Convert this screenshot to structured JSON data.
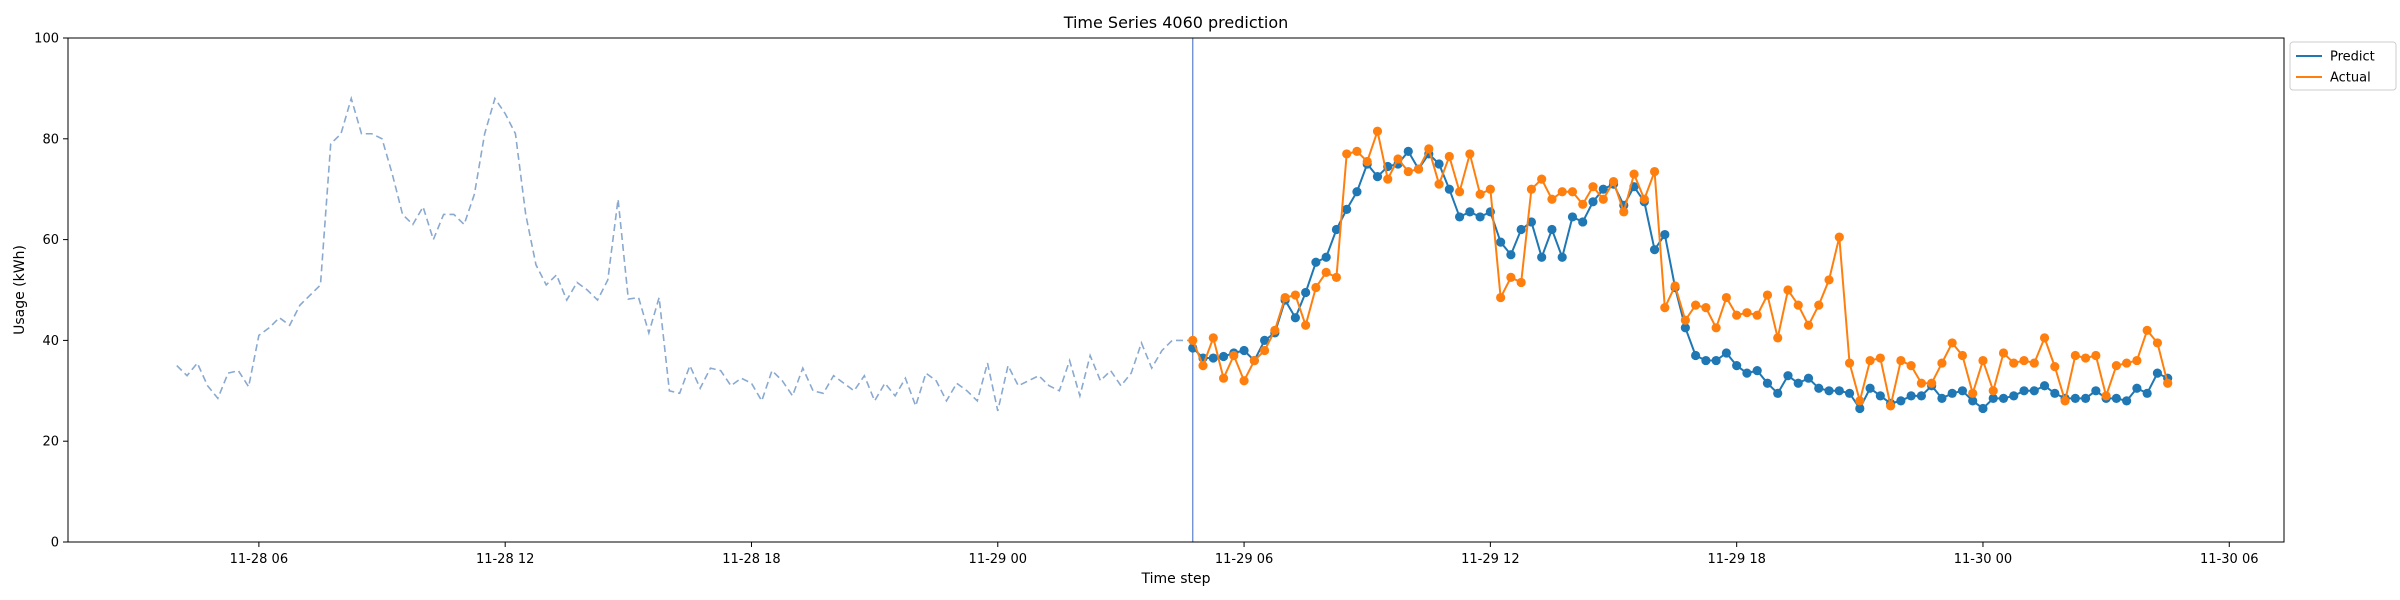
{
  "chart_data": {
    "type": "line",
    "title": "Time Series 4060 prediction",
    "xlabel": "Time step",
    "ylabel": "Usage (kWh)",
    "ylim": [
      0,
      100
    ],
    "yticks": [
      0,
      20,
      40,
      60,
      80,
      100
    ],
    "xlim": [
      "2024-11-28 01:21",
      "2024-11-30 07:20"
    ],
    "xtick_labels": [
      {
        "label": "11-28 06",
        "x": "2024-11-28 06:00"
      },
      {
        "label": "11-28 12",
        "x": "2024-11-28 12:00"
      },
      {
        "label": "11-28 18",
        "x": "2024-11-28 18:00"
      },
      {
        "label": "11-29 00",
        "x": "2024-11-29 00:00"
      },
      {
        "label": "11-29 06",
        "x": "2024-11-29 06:00"
      },
      {
        "label": "11-29 12",
        "x": "2024-11-29 12:00"
      },
      {
        "label": "11-29 18",
        "x": "2024-11-29 18:00"
      },
      {
        "label": "11-30 00",
        "x": "2024-11-30 00:00"
      },
      {
        "label": "11-30 06",
        "x": "2024-11-30 06:00"
      }
    ],
    "interval_minutes": 15,
    "history": {
      "start": "2024-11-28 04:00",
      "color": "#8aa9d0",
      "style": "dashed",
      "values": [
        35,
        33,
        35.5,
        31,
        28.5,
        33.5,
        34,
        30.8,
        41,
        42.5,
        44.5,
        43,
        47,
        49,
        51,
        79,
        81,
        88,
        81,
        81,
        80,
        73,
        65,
        63,
        66.5,
        60,
        65,
        65,
        63,
        69,
        81,
        88,
        85,
        81,
        65,
        55,
        51,
        53,
        48,
        51.5,
        50,
        48,
        52,
        68,
        48.2,
        48.5,
        41.5,
        48.5,
        30,
        29.5,
        35,
        30.5,
        34.5,
        34,
        31,
        32.5,
        31.5,
        28,
        34,
        32,
        29,
        34.5,
        30,
        29.5,
        33,
        31.5,
        30,
        33,
        28,
        31.5,
        29,
        32.5,
        27,
        33.5,
        32,
        28,
        31.5,
        30,
        28,
        35.5,
        26,
        35,
        31,
        32,
        33,
        31,
        30,
        36,
        29,
        37,
        32,
        34,
        31,
        33.5,
        39.5,
        34.5,
        38,
        40
      ]
    },
    "forecast_start": "2024-11-29 04:45",
    "series": [
      {
        "name": "Predict",
        "color": "#1f77b4",
        "values": [
          38.5,
          36.5,
          36.5,
          36.8,
          37.5,
          38,
          36,
          40,
          41.5,
          48,
          44.5,
          49.5,
          55.5,
          56.5,
          62,
          66,
          69.5,
          75,
          72.5,
          74.5,
          75,
          77.5,
          74,
          77,
          75,
          70,
          64.5,
          65.5,
          64.5,
          65.5,
          59.5,
          57,
          62,
          63.5,
          56.5,
          62,
          56.5,
          64.5,
          63.5,
          67.5,
          70,
          71,
          66.8,
          70.5,
          67.5,
          58,
          61,
          50.5,
          42.5,
          37,
          36,
          36,
          37.5,
          35,
          33.5,
          34,
          31.5,
          29.5,
          33,
          31.5,
          32.5,
          30.5,
          30,
          30,
          29.5,
          26.5,
          30.5,
          29,
          27.5,
          28,
          29,
          29,
          31,
          28.5,
          29.5,
          30,
          28,
          26.5,
          28.5,
          28.5,
          29,
          30,
          30,
          31,
          29.5,
          28.5,
          28.5,
          28.5,
          30,
          28.5,
          28.5,
          28,
          30.5,
          29.5,
          33.5,
          32.5
        ]
      },
      {
        "name": "Actual",
        "color": "#ff7f0e",
        "values": [
          40,
          35,
          40.5,
          32.5,
          37,
          32,
          36,
          38,
          42,
          48.5,
          49,
          43,
          50.5,
          53.5,
          52.5,
          77,
          77.5,
          75.5,
          81.5,
          72,
          76,
          73.5,
          74,
          78,
          71,
          76.5,
          69.5,
          77,
          69,
          70,
          48.5,
          52.5,
          51.5,
          70,
          72,
          68,
          69.5,
          69.5,
          67,
          70.5,
          68,
          71.5,
          65.5,
          73,
          68,
          73.5,
          46.5,
          50.8,
          44,
          47,
          46.5,
          42.5,
          48.5,
          45,
          45.5,
          45,
          49,
          40.5,
          50,
          47,
          43,
          47,
          52,
          60.5,
          35.5,
          28,
          36,
          36.5,
          27,
          36,
          35,
          31.5,
          31.5,
          35.5,
          39.5,
          37,
          29.5,
          36,
          30,
          37.5,
          35.5,
          36,
          35.5,
          40.5,
          34.8,
          28,
          37,
          36.5,
          37,
          29,
          35,
          35.5,
          36,
          42,
          39.5,
          31.5
        ]
      }
    ],
    "vline": {
      "x": "2024-11-29 04:45",
      "color": "#5b7fc9"
    },
    "grid": false,
    "legend_position": "top-right"
  }
}
